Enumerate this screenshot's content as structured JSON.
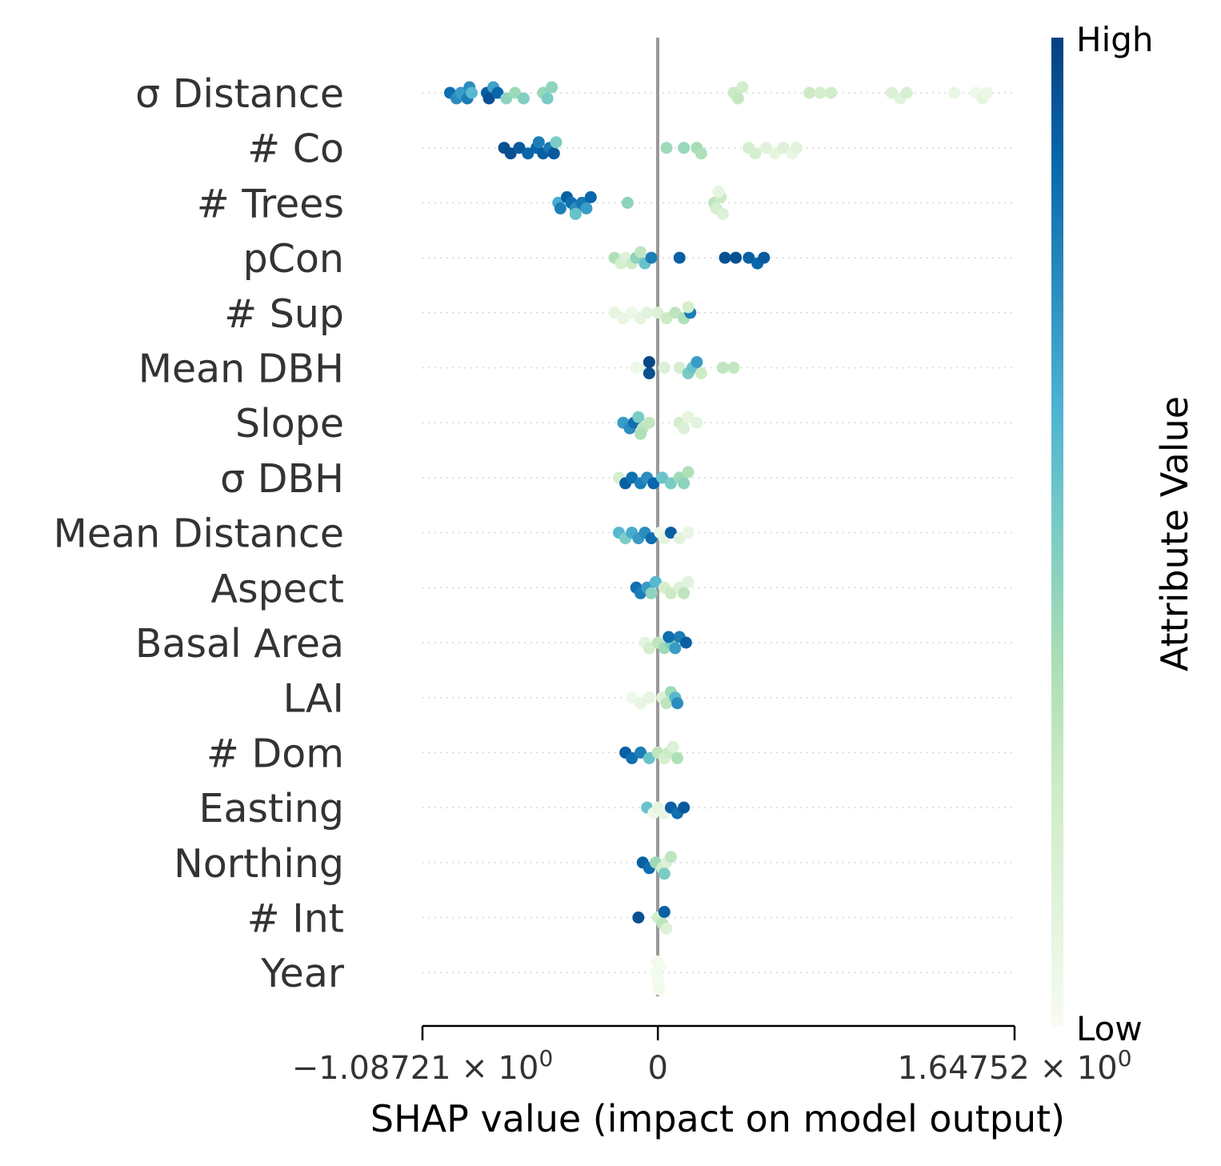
{
  "chart_data": {
    "type": "scatter",
    "subtype": "shap-beeswarm",
    "xlabel": "SHAP value (impact on model output)",
    "ylabel": "",
    "xlim": [
      -1.08721,
      1.64752
    ],
    "xticks": [
      {
        "value": -1.08721,
        "label": "−1.08721 × 10",
        "sup": "0"
      },
      {
        "value": 0,
        "label": "0",
        "sup": ""
      },
      {
        "value": 1.64752,
        "label": "1.64752 × 10",
        "sup": "0"
      }
    ],
    "colorbar": {
      "title": "Attribute Value",
      "high_label": "High",
      "low_label": "Low",
      "colormap": "GnBu",
      "stops": [
        "#f7fcf0",
        "#e0f3db",
        "#ccebc5",
        "#a8ddb5",
        "#7bccc4",
        "#4eb3d3",
        "#2b8cbe",
        "#0868ac",
        "#084081"
      ]
    },
    "zero_line_color": "#999999",
    "features": [
      {
        "name": "σ Distance",
        "points": [
          [
            -0.96,
            0.85
          ],
          [
            -0.93,
            0.75
          ],
          [
            -0.91,
            0.7
          ],
          [
            -0.88,
            0.8
          ],
          [
            -0.87,
            0.75
          ],
          [
            -0.86,
            0.6
          ],
          [
            -0.79,
            0.9
          ],
          [
            -0.78,
            0.95
          ],
          [
            -0.76,
            0.68
          ],
          [
            -0.74,
            0.88
          ],
          [
            -0.7,
            0.45
          ],
          [
            -0.66,
            0.4
          ],
          [
            -0.62,
            0.48
          ],
          [
            -0.53,
            0.42
          ],
          [
            -0.51,
            0.5
          ],
          [
            -0.49,
            0.45
          ],
          [
            0.35,
            0.25
          ],
          [
            0.37,
            0.28
          ],
          [
            0.39,
            0.22
          ],
          [
            0.7,
            0.25
          ],
          [
            0.75,
            0.2
          ],
          [
            0.8,
            0.22
          ],
          [
            1.08,
            0.15
          ],
          [
            1.12,
            0.12
          ],
          [
            1.15,
            0.18
          ],
          [
            1.37,
            0.08
          ],
          [
            1.47,
            0.05
          ],
          [
            1.5,
            0.1
          ],
          [
            1.52,
            0.06
          ]
        ]
      },
      {
        "name": "# Co",
        "points": [
          [
            -0.71,
            0.95
          ],
          [
            -0.68,
            0.95
          ],
          [
            -0.64,
            0.92
          ],
          [
            -0.6,
            0.88
          ],
          [
            -0.56,
            0.88
          ],
          [
            -0.53,
            0.9
          ],
          [
            -0.5,
            0.82
          ],
          [
            -0.48,
            0.92
          ],
          [
            -0.55,
            0.8
          ],
          [
            -0.47,
            0.5
          ],
          [
            0.04,
            0.4
          ],
          [
            0.12,
            0.42
          ],
          [
            0.18,
            0.38
          ],
          [
            0.2,
            0.35
          ],
          [
            0.42,
            0.2
          ],
          [
            0.45,
            0.18
          ],
          [
            0.5,
            0.12
          ],
          [
            0.54,
            0.1
          ],
          [
            0.58,
            0.15
          ],
          [
            0.62,
            0.08
          ],
          [
            0.64,
            0.12
          ]
        ]
      },
      {
        "name": "# Trees",
        "points": [
          [
            -0.46,
            0.65
          ],
          [
            -0.45,
            0.8
          ],
          [
            -0.42,
            0.9
          ],
          [
            -0.4,
            0.85
          ],
          [
            -0.38,
            0.75
          ],
          [
            -0.35,
            0.82
          ],
          [
            -0.33,
            0.7
          ],
          [
            -0.31,
            0.88
          ],
          [
            -0.38,
            0.55
          ],
          [
            -0.14,
            0.45
          ],
          [
            0.26,
            0.3
          ],
          [
            0.27,
            0.2
          ],
          [
            0.29,
            0.25
          ],
          [
            0.3,
            0.15
          ],
          [
            0.28,
            0.1
          ]
        ]
      },
      {
        "name": "pCon",
        "points": [
          [
            -0.2,
            0.35
          ],
          [
            -0.17,
            0.2
          ],
          [
            -0.15,
            0.15
          ],
          [
            -0.12,
            0.25
          ],
          [
            -0.1,
            0.45
          ],
          [
            -0.08,
            0.3
          ],
          [
            -0.06,
            0.55
          ],
          [
            -0.03,
            0.8
          ],
          [
            0.1,
            0.9
          ],
          [
            0.31,
            0.95
          ],
          [
            0.36,
            0.95
          ],
          [
            0.42,
            0.9
          ],
          [
            0.46,
            0.88
          ],
          [
            0.49,
            0.92
          ]
        ]
      },
      {
        "name": "# Sup",
        "points": [
          [
            -0.2,
            0.1
          ],
          [
            -0.16,
            0.08
          ],
          [
            -0.12,
            0.05
          ],
          [
            -0.08,
            0.1
          ],
          [
            -0.05,
            0.12
          ],
          [
            0.0,
            0.15
          ],
          [
            0.04,
            0.25
          ],
          [
            0.08,
            0.3
          ],
          [
            0.12,
            0.35
          ],
          [
            0.15,
            0.8
          ],
          [
            0.14,
            0.2
          ]
        ]
      },
      {
        "name": "Mean DBH",
        "points": [
          [
            -0.1,
            0.05
          ],
          [
            -0.05,
            0.1
          ],
          [
            -0.04,
            0.95
          ],
          [
            -0.04,
            0.98
          ],
          [
            0.03,
            0.15
          ],
          [
            0.1,
            0.2
          ],
          [
            0.14,
            0.5
          ],
          [
            0.16,
            0.55
          ],
          [
            0.18,
            0.7
          ],
          [
            0.2,
            0.25
          ],
          [
            0.3,
            0.3
          ],
          [
            0.35,
            0.28
          ]
        ]
      },
      {
        "name": "Slope",
        "points": [
          [
            -0.16,
            0.7
          ],
          [
            -0.13,
            0.75
          ],
          [
            -0.11,
            0.85
          ],
          [
            -0.09,
            0.5
          ],
          [
            -0.07,
            0.3
          ],
          [
            -0.04,
            0.28
          ],
          [
            -0.08,
            0.35
          ],
          [
            0.1,
            0.2
          ],
          [
            0.12,
            0.15
          ],
          [
            0.14,
            0.1
          ],
          [
            0.18,
            0.12
          ]
        ]
      },
      {
        "name": "σ DBH",
        "points": [
          [
            -0.18,
            0.2
          ],
          [
            -0.15,
            0.9
          ],
          [
            -0.12,
            0.85
          ],
          [
            -0.08,
            0.8
          ],
          [
            -0.05,
            0.75
          ],
          [
            -0.02,
            0.88
          ],
          [
            0.02,
            0.55
          ],
          [
            0.06,
            0.5
          ],
          [
            0.1,
            0.4
          ],
          [
            0.12,
            0.45
          ],
          [
            0.14,
            0.35
          ]
        ]
      },
      {
        "name": "Mean Distance",
        "points": [
          [
            -0.18,
            0.6
          ],
          [
            -0.15,
            0.5
          ],
          [
            -0.12,
            0.65
          ],
          [
            -0.09,
            0.7
          ],
          [
            -0.06,
            0.75
          ],
          [
            -0.03,
            0.85
          ],
          [
            0.01,
            0.05
          ],
          [
            0.03,
            0.1
          ],
          [
            0.06,
            0.9
          ],
          [
            0.1,
            0.12
          ],
          [
            0.14,
            0.08
          ]
        ]
      },
      {
        "name": "Aspect",
        "points": [
          [
            -0.1,
            0.85
          ],
          [
            -0.08,
            0.8
          ],
          [
            -0.05,
            0.7
          ],
          [
            -0.03,
            0.45
          ],
          [
            -0.01,
            0.6
          ],
          [
            0.03,
            0.2
          ],
          [
            0.06,
            0.25
          ],
          [
            0.1,
            0.15
          ],
          [
            0.12,
            0.3
          ],
          [
            0.14,
            0.12
          ]
        ]
      },
      {
        "name": "Basal Area",
        "points": [
          [
            -0.06,
            0.1
          ],
          [
            -0.04,
            0.2
          ],
          [
            0.0,
            0.3
          ],
          [
            0.03,
            0.4
          ],
          [
            0.06,
            0.5
          ],
          [
            0.08,
            0.7
          ],
          [
            0.1,
            0.8
          ],
          [
            0.13,
            0.9
          ],
          [
            0.05,
            0.85
          ]
        ]
      },
      {
        "name": "LAI",
        "points": [
          [
            -0.12,
            0.05
          ],
          [
            -0.08,
            0.08
          ],
          [
            -0.04,
            0.1
          ],
          [
            0.02,
            0.15
          ],
          [
            0.04,
            0.3
          ],
          [
            0.06,
            0.4
          ],
          [
            0.08,
            0.6
          ],
          [
            0.09,
            0.75
          ]
        ]
      },
      {
        "name": "# Dom",
        "points": [
          [
            -0.15,
            0.9
          ],
          [
            -0.12,
            0.85
          ],
          [
            -0.08,
            0.8
          ],
          [
            -0.04,
            0.55
          ],
          [
            0.0,
            0.3
          ],
          [
            0.03,
            0.2
          ],
          [
            0.05,
            0.25
          ],
          [
            0.07,
            0.15
          ],
          [
            0.09,
            0.35
          ]
        ]
      },
      {
        "name": "Easting",
        "points": [
          [
            -0.05,
            0.55
          ],
          [
            -0.02,
            0.05
          ],
          [
            0.0,
            0.1
          ],
          [
            0.03,
            0.08
          ],
          [
            0.06,
            0.9
          ],
          [
            0.09,
            0.85
          ],
          [
            0.12,
            0.92
          ]
        ]
      },
      {
        "name": "Northing",
        "points": [
          [
            -0.07,
            0.9
          ],
          [
            -0.04,
            0.85
          ],
          [
            -0.01,
            0.4
          ],
          [
            0.02,
            0.2
          ],
          [
            0.04,
            0.15
          ],
          [
            0.06,
            0.3
          ],
          [
            0.03,
            0.5
          ]
        ]
      },
      {
        "name": "# Int",
        "points": [
          [
            -0.09,
            0.95
          ],
          [
            0.0,
            0.2
          ],
          [
            0.02,
            0.3
          ],
          [
            0.03,
            0.9
          ],
          [
            0.04,
            0.15
          ]
        ]
      },
      {
        "name": "Year",
        "points": [
          [
            -0.01,
            0.02
          ],
          [
            0.0,
            0.03
          ],
          [
            0.01,
            0.02
          ],
          [
            0.0,
            0.01
          ],
          [
            -0.005,
            0.02
          ],
          [
            0.005,
            0.03
          ]
        ]
      }
    ]
  }
}
